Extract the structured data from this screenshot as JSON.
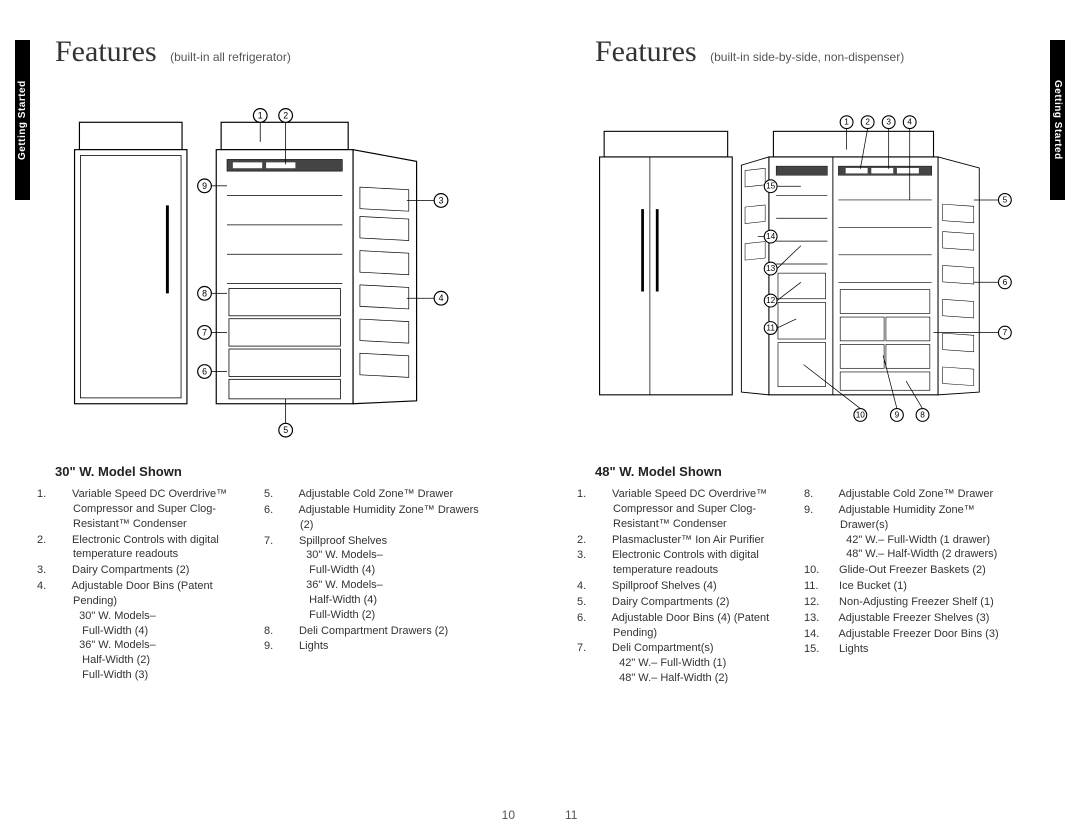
{
  "sideTab": "Getting Started",
  "left": {
    "heading": "Features",
    "headingSub": "(built-in all refrigerator)",
    "modelTitle": "30\" W. Model Shown",
    "pageNum": "10",
    "callouts": [
      "1",
      "2",
      "3",
      "4",
      "5",
      "6",
      "7",
      "8",
      "9"
    ],
    "colA": [
      {
        "n": "1.",
        "t": "Variable Speed DC Overdrive™ Compressor and Super Clog-Resistant™ Condenser"
      },
      {
        "n": "2.",
        "t": "Electronic Controls with digital temperature readouts"
      },
      {
        "n": "3.",
        "t": "Dairy Compartments (2)"
      },
      {
        "n": "4.",
        "t": "Adjustable Door Bins (Patent Pending)\n30\" W. Models–\n  Full-Width (4)\n36\" W. Models–\n  Half-Width (2)\n  Full-Width (3)"
      }
    ],
    "colB": [
      {
        "n": "5.",
        "t": "Adjustable Cold Zone™ Drawer"
      },
      {
        "n": "6.",
        "t": "Adjustable Humidity Zone™ Drawers (2)"
      },
      {
        "n": "7.",
        "t": "Spillproof Shelves\n30\" W. Models–\n  Full-Width (4)\n36\" W. Models–\n  Half-Width (4)\n  Full-Width (2)"
      },
      {
        "n": "8.",
        "t": "Deli Compartment Drawers (2)"
      },
      {
        "n": "9.",
        "t": "Lights"
      }
    ]
  },
  "right": {
    "heading": "Features",
    "headingSub": "(built-in side-by-side, non-dispenser)",
    "modelTitle": "48\" W. Model Shown",
    "pageNum": "11",
    "callouts": [
      "1",
      "2",
      "3",
      "4",
      "5",
      "6",
      "7",
      "8",
      "9",
      "10",
      "11",
      "12",
      "13",
      "14",
      "15"
    ],
    "colA": [
      {
        "n": "1.",
        "t": "Variable Speed DC Overdrive™ Compressor and Super Clog-Resistant™ Condenser"
      },
      {
        "n": "2.",
        "t": "Plasmacluster™ Ion Air Purifier"
      },
      {
        "n": "3.",
        "t": "Electronic Controls with digital temperature readouts"
      },
      {
        "n": "4.",
        "t": "Spillproof Shelves (4)"
      },
      {
        "n": "5.",
        "t": "Dairy Compartments (2)"
      },
      {
        "n": "6.",
        "t": "Adjustable Door Bins (4) (Patent Pending)"
      },
      {
        "n": "7.",
        "t": "Deli Compartment(s)\n42\" W.– Full-Width (1)\n48\" W.– Half-Width (2)"
      }
    ],
    "colB": [
      {
        "n": "8.",
        "t": "Adjustable Cold Zone™ Drawer"
      },
      {
        "n": "9.",
        "t": "Adjustable Humidity Zone™ Drawer(s)\n42\" W.– Full-Width (1 drawer)\n48\" W.– Half-Width (2 drawers)"
      },
      {
        "n": "10.",
        "t": "Glide-Out Freezer Baskets (2)"
      },
      {
        "n": "11.",
        "t": "Ice Bucket (1)"
      },
      {
        "n": "12.",
        "t": "Non-Adjusting Freezer Shelf (1)"
      },
      {
        "n": "13.",
        "t": "Adjustable Freezer Shelves (3)"
      },
      {
        "n": "14.",
        "t": "Adjustable Freezer Door Bins (3)"
      },
      {
        "n": "15.",
        "t": "Lights"
      }
    ]
  },
  "styling": {
    "page_bg": "#ffffff",
    "tab_bg": "#000000",
    "tab_fg": "#ffffff",
    "heading_font": "Georgia serif",
    "heading_size_pt": 22,
    "body_size_pt": 8,
    "stroke": "#000000",
    "callout_radius": 6
  }
}
